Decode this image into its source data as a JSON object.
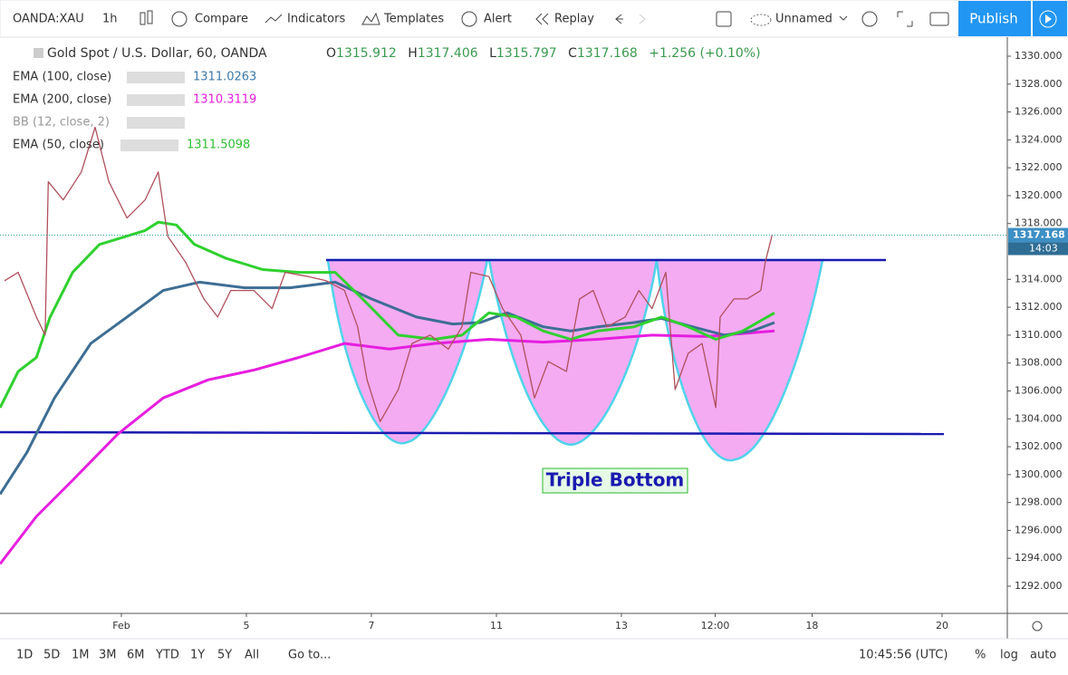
{
  "toolbar": {
    "symbol": "OANDA:XAU",
    "interval": "1h",
    "compare": "Compare",
    "indicators": "Indicators",
    "templates": "Templates",
    "alert": "Alert",
    "replay": "Replay",
    "layout": "Unnamed",
    "publish": "Publish"
  },
  "chart_data": {
    "type": "line",
    "title": "Gold Spot / U.S. Dollar, 60, OANDA",
    "ohlc": [
      {
        "label": "O",
        "value": 1315.912
      },
      {
        "label": "H",
        "value": 1317.406
      },
      {
        "label": "L",
        "value": 1315.797
      },
      {
        "label": "C",
        "value": 1317.168
      }
    ],
    "change": "+1.256 (+0.10%)",
    "last_price": 1317.168,
    "countdown": "14:03",
    "annotation": "Triple Bottom",
    "legend_extra": "BB (12, close, 2)",
    "xlim": [
      -1.942,
      14.174
    ],
    "xticks": [
      {
        "value": 0,
        "label": "Feb"
      },
      {
        "value": 2,
        "label": "5"
      },
      {
        "value": 4,
        "label": "7"
      },
      {
        "value": 6,
        "label": "11"
      },
      {
        "value": 8,
        "label": "13"
      },
      {
        "value": 9.5,
        "label": "12:00"
      },
      {
        "value": 11.05,
        "label": "18"
      },
      {
        "value": 13.13,
        "label": "20"
      }
    ],
    "ylim": [
      1290.05,
      1331.43
    ],
    "yticks": [
      {
        "value": 1292,
        "label": "1292.000"
      },
      {
        "value": 1294,
        "label": "1294.000"
      },
      {
        "value": 1296,
        "label": "1296.000"
      },
      {
        "value": 1298,
        "label": "1298.000"
      },
      {
        "value": 1300,
        "label": "1300.000"
      },
      {
        "value": 1302,
        "label": "1302.000"
      },
      {
        "value": 1304,
        "label": "1304.000"
      },
      {
        "value": 1306,
        "label": "1306.000"
      },
      {
        "value": 1308,
        "label": "1308.000"
      },
      {
        "value": 1310,
        "label": "1310.000"
      },
      {
        "value": 1312,
        "label": "1312.000"
      },
      {
        "value": 1314,
        "label": "1314.000"
      },
      {
        "value": 1318,
        "label": "1318.000"
      },
      {
        "value": 1320,
        "label": "1320.000"
      },
      {
        "value": 1322,
        "label": "1322.000"
      },
      {
        "value": 1324,
        "label": "1324.000"
      },
      {
        "value": 1326,
        "label": "1326.000"
      },
      {
        "value": 1328,
        "label": "1328.000"
      },
      {
        "value": 1330,
        "label": "1330.000"
      }
    ],
    "grid": false,
    "series": [
      {
        "name": "Gold Spot / U.S. Dollar, 60, OANDA",
        "color": "#b0505c",
        "x": [
          -1.87,
          -1.65,
          -1.36,
          -1.22,
          -1.17,
          -0.93,
          -0.64,
          -0.42,
          -0.2,
          0.09,
          0.38,
          0.59,
          0.74,
          1.03,
          1.32,
          1.54,
          1.75,
          2.12,
          2.41,
          2.62,
          2.99,
          3.28,
          3.57,
          3.78,
          3.93,
          4.14,
          4.43,
          4.65,
          4.94,
          5.23,
          5.45,
          5.59,
          5.88,
          6.1,
          6.39,
          6.61,
          6.83,
          7.12,
          7.33,
          7.55,
          7.77,
          8.06,
          8.28,
          8.49,
          8.71,
          8.86,
          9.07,
          9.29,
          9.51,
          9.58,
          9.8,
          10.01,
          10.23,
          10.3,
          10.41
        ],
        "values": [
          1313.9,
          1314.5,
          1311.3,
          1310,
          1321,
          1319.7,
          1321.7,
          1324.9,
          1321,
          1318.4,
          1319.7,
          1321.7,
          1317.1,
          1315.2,
          1312.6,
          1311.3,
          1313.2,
          1313.2,
          1311.9,
          1314.5,
          1314.2,
          1313.9,
          1313.2,
          1310.6,
          1306.8,
          1303.8,
          1306.1,
          1309.4,
          1310,
          1309,
          1310.6,
          1314.5,
          1314.2,
          1311.9,
          1310,
          1305.5,
          1308.1,
          1307.4,
          1312.6,
          1313.2,
          1310.6,
          1311.3,
          1313.2,
          1311.9,
          1314.5,
          1306.1,
          1308.7,
          1309.4,
          1304.8,
          1311.3,
          1312.6,
          1312.6,
          1313.2,
          1315.2,
          1317.17
        ]
      },
      {
        "name": "EMA (100, close)",
        "color": "#3d6e94",
        "last_value": 1311.0263,
        "width": 3,
        "x": [
          -1.94,
          -1.51,
          -1.07,
          -0.49,
          0.09,
          0.67,
          1.25,
          1.97,
          2.7,
          3.42,
          4,
          4.72,
          5.3,
          5.74,
          6.17,
          6.75,
          7.19,
          7.62,
          8.2,
          8.64,
          9.22,
          9.65,
          10.09,
          10.45
        ],
        "values": [
          1298.6,
          1301.6,
          1305.5,
          1309.4,
          1311.3,
          1313.2,
          1313.8,
          1313.4,
          1313.4,
          1313.8,
          1312.6,
          1311.3,
          1310.8,
          1310.9,
          1311.6,
          1310.6,
          1310.3,
          1310.6,
          1310.9,
          1311.2,
          1310.5,
          1310,
          1310.3,
          1310.9
        ]
      },
      {
        "name": "EMA (200, close)",
        "color": "#e61ee0",
        "last_value": 1310.3119,
        "width": 3,
        "x": [
          -1.94,
          -1.36,
          -0.78,
          -0.06,
          0.67,
          1.39,
          2.12,
          2.84,
          3.57,
          4.29,
          5.01,
          5.88,
          6.75,
          7.62,
          8.49,
          9.36,
          10.45
        ],
        "values": [
          1293.6,
          1297,
          1299.6,
          1302.9,
          1305.5,
          1306.8,
          1307.5,
          1308.4,
          1309.4,
          1309,
          1309.4,
          1309.7,
          1309.5,
          1309.7,
          1310,
          1309.9,
          1310.3
        ]
      },
      {
        "name": "EMA (50, close)",
        "color": "#2fd12f",
        "last_value": 1311.5098,
        "width": 3,
        "x": [
          -1.94,
          -1.65,
          -1.36,
          -1.14,
          -0.78,
          -0.35,
          0.09,
          0.38,
          0.59,
          0.88,
          1.17,
          1.68,
          2.26,
          2.84,
          3.42,
          3.86,
          4.43,
          5.01,
          5.45,
          5.88,
          6.32,
          6.75,
          7.19,
          7.62,
          8.2,
          8.64,
          9.07,
          9.51,
          9.94,
          10.45
        ],
        "values": [
          1304.8,
          1307.4,
          1308.4,
          1311.3,
          1314.5,
          1316.5,
          1317.1,
          1317.5,
          1318.1,
          1317.9,
          1316.5,
          1315.5,
          1314.7,
          1314.5,
          1314.5,
          1312.6,
          1310,
          1309.7,
          1310,
          1311.6,
          1311.3,
          1310.3,
          1309.7,
          1310.3,
          1310.6,
          1311.3,
          1310.6,
          1309.7,
          1310.3,
          1311.6
        ]
      }
    ]
  },
  "bottom_bar": {
    "ranges": [
      "1D",
      "5D",
      "1M",
      "3M",
      "6M",
      "YTD",
      "1Y",
      "5Y",
      "All"
    ],
    "goto": "Go to...",
    "time": "10:45:56 (UTC)",
    "percent": "%",
    "log": "log",
    "auto": "auto"
  }
}
